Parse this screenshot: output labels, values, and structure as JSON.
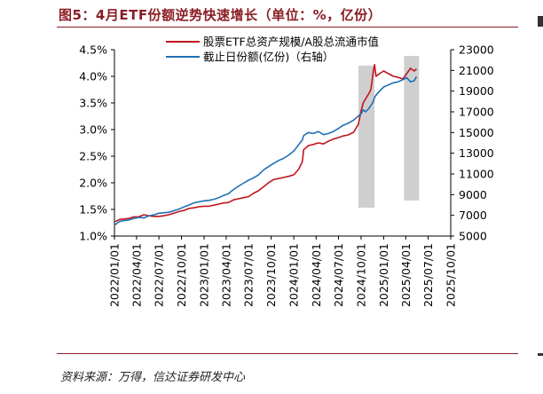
{
  "title": "图5：4月ETF份额逆势快速增长（单位：%，亿份）",
  "source": "资料来源：万得，信达证券研发中心",
  "chart_data": {
    "type": "line",
    "legend": {
      "placement": "top-right",
      "entries": [
        "股票ETF总资产规模/A股总流通市值",
        "截止日份额(亿份)（右轴）"
      ]
    },
    "left_axis": {
      "ylim": [
        1.0,
        4.5
      ],
      "ticks": [
        "1.0%",
        "1.5%",
        "2.0%",
        "2.5%",
        "3.0%",
        "3.5%",
        "4.0%",
        "4.5%"
      ]
    },
    "right_axis": {
      "ylim": [
        5000,
        23000
      ],
      "ticks": [
        "5000",
        "7000",
        "9000",
        "11000",
        "13000",
        "15000",
        "17000",
        "19000",
        "21000",
        "23000"
      ]
    },
    "x_axis": {
      "start": "2022-01-01",
      "end": "2025-10-01",
      "ticks": [
        "2022/01/01",
        "2022/04/01",
        "2022/07/01",
        "2022/10/01",
        "2023/01/01",
        "2023/04/01",
        "2023/07/01",
        "2023/10/01",
        "2024/01/01",
        "2024/04/01",
        "2024/07/01",
        "2024/10/01",
        "2025/01/01",
        "2025/04/01",
        "2025/07/01",
        "2025/10/01"
      ]
    },
    "shaded_periods": [
      {
        "from": "2024-09-20",
        "to": "2024-11-25"
      },
      {
        "from": "2025-03-25",
        "to": "2025-05-25"
      }
    ],
    "series": [
      {
        "name": "股票ETF总资产规模/A股总流通市值",
        "axis": "left",
        "color": "#c0151c",
        "points": [
          [
            "2022-01-04",
            1.27
          ],
          [
            "2022-01-20",
            1.31
          ],
          [
            "2022-02-10",
            1.32
          ],
          [
            "2022-03-01",
            1.33
          ],
          [
            "2022-03-20",
            1.36
          ],
          [
            "2022-04-10",
            1.36
          ],
          [
            "2022-05-01",
            1.4
          ],
          [
            "2022-05-20",
            1.38
          ],
          [
            "2022-06-10",
            1.37
          ],
          [
            "2022-07-01",
            1.37
          ],
          [
            "2022-07-20",
            1.38
          ],
          [
            "2022-08-10",
            1.4
          ],
          [
            "2022-09-01",
            1.43
          ],
          [
            "2022-09-20",
            1.46
          ],
          [
            "2022-10-10",
            1.48
          ],
          [
            "2022-11-01",
            1.52
          ],
          [
            "2022-11-20",
            1.53
          ],
          [
            "2022-12-10",
            1.55
          ],
          [
            "2023-01-01",
            1.56
          ],
          [
            "2023-01-20",
            1.56
          ],
          [
            "2023-02-10",
            1.58
          ],
          [
            "2023-03-01",
            1.6
          ],
          [
            "2023-03-20",
            1.62
          ],
          [
            "2023-04-10",
            1.63
          ],
          [
            "2023-05-01",
            1.68
          ],
          [
            "2023-05-20",
            1.7
          ],
          [
            "2023-06-10",
            1.72
          ],
          [
            "2023-07-01",
            1.74
          ],
          [
            "2023-07-20",
            1.8
          ],
          [
            "2023-08-10",
            1.85
          ],
          [
            "2023-09-01",
            1.93
          ],
          [
            "2023-09-20",
            2.0
          ],
          [
            "2023-10-10",
            2.06
          ],
          [
            "2023-11-01",
            2.08
          ],
          [
            "2023-11-20",
            2.1
          ],
          [
            "2023-12-10",
            2.12
          ],
          [
            "2024-01-01",
            2.15
          ],
          [
            "2024-01-20",
            2.25
          ],
          [
            "2024-02-05",
            2.4
          ],
          [
            "2024-02-10",
            2.62
          ],
          [
            "2024-03-01",
            2.7
          ],
          [
            "2024-03-20",
            2.72
          ],
          [
            "2024-04-10",
            2.75
          ],
          [
            "2024-05-01",
            2.73
          ],
          [
            "2024-05-20",
            2.78
          ],
          [
            "2024-06-10",
            2.82
          ],
          [
            "2024-07-01",
            2.85
          ],
          [
            "2024-07-20",
            2.88
          ],
          [
            "2024-08-10",
            2.9
          ],
          [
            "2024-09-01",
            2.95
          ],
          [
            "2024-09-20",
            3.1
          ],
          [
            "2024-10-01",
            3.35
          ],
          [
            "2024-10-10",
            3.5
          ],
          [
            "2024-10-20",
            3.58
          ],
          [
            "2024-11-01",
            3.67
          ],
          [
            "2024-11-10",
            3.75
          ],
          [
            "2024-11-20",
            4.1
          ],
          [
            "2024-11-25",
            4.22
          ],
          [
            "2024-12-01",
            4.0
          ],
          [
            "2024-12-15",
            4.05
          ],
          [
            "2025-01-01",
            4.1
          ],
          [
            "2025-01-20",
            4.05
          ],
          [
            "2025-02-10",
            4.0
          ],
          [
            "2025-03-01",
            3.98
          ],
          [
            "2025-03-20",
            3.95
          ],
          [
            "2025-04-05",
            4.05
          ],
          [
            "2025-04-20",
            4.15
          ],
          [
            "2025-05-05",
            4.1
          ],
          [
            "2025-05-15",
            4.14
          ]
        ]
      },
      {
        "name": "截止日份额(亿份)（右轴）",
        "axis": "right",
        "color": "#1f6fb5",
        "points": [
          [
            "2022-01-04",
            6100
          ],
          [
            "2022-01-20",
            6400
          ],
          [
            "2022-02-10",
            6500
          ],
          [
            "2022-03-01",
            6550
          ],
          [
            "2022-03-20",
            6700
          ],
          [
            "2022-04-10",
            6800
          ],
          [
            "2022-05-01",
            6750
          ],
          [
            "2022-05-20",
            6950
          ],
          [
            "2022-06-10",
            7050
          ],
          [
            "2022-07-01",
            7200
          ],
          [
            "2022-07-20",
            7250
          ],
          [
            "2022-08-10",
            7300
          ],
          [
            "2022-09-01",
            7450
          ],
          [
            "2022-09-20",
            7600
          ],
          [
            "2022-10-10",
            7800
          ],
          [
            "2022-11-01",
            8000
          ],
          [
            "2022-11-20",
            8200
          ],
          [
            "2022-12-10",
            8300
          ],
          [
            "2023-01-01",
            8400
          ],
          [
            "2023-01-20",
            8450
          ],
          [
            "2023-02-10",
            8550
          ],
          [
            "2023-03-01",
            8700
          ],
          [
            "2023-03-20",
            8900
          ],
          [
            "2023-04-10",
            9100
          ],
          [
            "2023-05-01",
            9500
          ],
          [
            "2023-05-20",
            9800
          ],
          [
            "2023-06-10",
            10100
          ],
          [
            "2023-07-01",
            10400
          ],
          [
            "2023-07-20",
            10600
          ],
          [
            "2023-08-10",
            10900
          ],
          [
            "2023-09-01",
            11400
          ],
          [
            "2023-09-20",
            11700
          ],
          [
            "2023-10-10",
            12000
          ],
          [
            "2023-11-01",
            12300
          ],
          [
            "2023-11-20",
            12500
          ],
          [
            "2023-12-10",
            12800
          ],
          [
            "2024-01-01",
            13200
          ],
          [
            "2024-01-20",
            13800
          ],
          [
            "2024-02-05",
            14300
          ],
          [
            "2024-02-10",
            14700
          ],
          [
            "2024-03-01",
            15000
          ],
          [
            "2024-03-20",
            14900
          ],
          [
            "2024-04-10",
            15100
          ],
          [
            "2024-05-01",
            14800
          ],
          [
            "2024-05-20",
            14900
          ],
          [
            "2024-06-10",
            15100
          ],
          [
            "2024-07-01",
            15400
          ],
          [
            "2024-07-20",
            15700
          ],
          [
            "2024-08-10",
            15900
          ],
          [
            "2024-09-01",
            16200
          ],
          [
            "2024-09-20",
            16600
          ],
          [
            "2024-10-01",
            16800
          ],
          [
            "2024-10-10",
            17200
          ],
          [
            "2024-10-20",
            17000
          ],
          [
            "2024-11-01",
            17300
          ],
          [
            "2024-11-10",
            17600
          ],
          [
            "2024-11-20",
            18000
          ],
          [
            "2024-11-25",
            18400
          ],
          [
            "2024-12-01",
            18600
          ],
          [
            "2024-12-15",
            19000
          ],
          [
            "2025-01-01",
            19400
          ],
          [
            "2025-01-20",
            19600
          ],
          [
            "2025-02-10",
            19800
          ],
          [
            "2025-03-01",
            19900
          ],
          [
            "2025-03-20",
            20100
          ],
          [
            "2025-04-05",
            20300
          ],
          [
            "2025-04-20",
            19900
          ],
          [
            "2025-05-05",
            20000
          ],
          [
            "2025-05-15",
            20400
          ]
        ]
      }
    ]
  }
}
